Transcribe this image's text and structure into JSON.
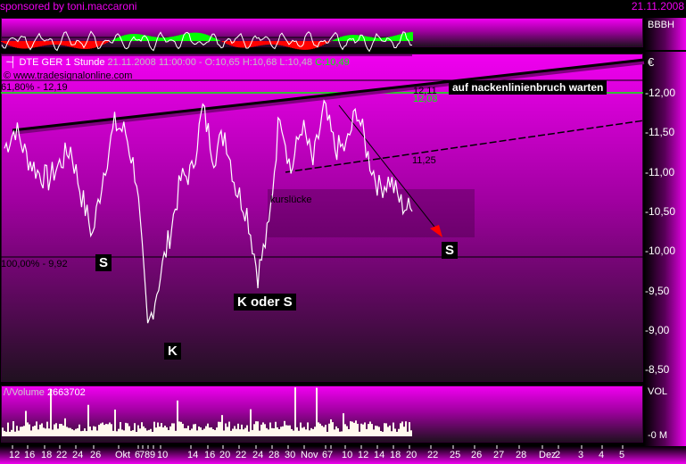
{
  "header": {
    "sponsor": "sponsored by toni.maccaroni",
    "date": "21.11.2008"
  },
  "oscillator": {
    "label": "BBBH"
  },
  "main": {
    "title": "DTE GER 1 Stunde",
    "quote": "21.11.2008 11:00:00 - O:10,65 H:10,68 L:10,48",
    "close": "C:10,49",
    "copyright": "© www.tradesignalonline.com",
    "currency": "€",
    "fib_618": "61,80% - 12,19",
    "fib_100": "100,00% - 9,92",
    "level_1211": "12,11",
    "level_1203": "12,03",
    "level_1125": "11,25",
    "gap_label": "kurslücke",
    "note": "auf nackenlinienbruch warten",
    "marks": {
      "s1": "S",
      "k": "K",
      "ks": "K oder S",
      "s2": "S"
    },
    "yticks": [
      "-12,00",
      "-11,50",
      "-11,00",
      "-10,50",
      "-10,00",
      "-9,50",
      "-9,00",
      "-8,50"
    ]
  },
  "volume": {
    "label": "Volume",
    "value": "2663702",
    "axis_top": "VOL",
    "axis_bottom": "-0 M"
  },
  "xaxis": [
    "12",
    "16",
    "18",
    "22",
    "24",
    "26",
    "Okt",
    "6",
    "7",
    "8",
    "9",
    "10",
    "14",
    "16",
    "20",
    "22",
    "24",
    "28",
    "30",
    "Nov",
    "6",
    "7",
    "10",
    "12",
    "14",
    "18",
    "20",
    "22",
    "25",
    "26",
    "27",
    "28",
    "Dez",
    "2",
    "3",
    "4",
    "5"
  ],
  "colors": {
    "panel_top": "#f000f0",
    "panel_bottom": "#201020",
    "price": "#ffffff",
    "green": "#00ff00",
    "red": "#ff0000"
  },
  "chart_data": {
    "type": "line",
    "title": "DTE GER 1 Stunde",
    "ylim": [
      8.2,
      12.4
    ],
    "yunit": "€",
    "close": [
      11.3,
      11.55,
      11.2,
      11.0,
      10.9,
      11.1,
      11.3,
      10.7,
      10.2,
      11.0,
      11.6,
      11.5,
      10.9,
      9.0,
      9.6,
      10.2,
      10.9,
      11.0,
      11.8,
      11.2,
      11.5,
      10.8,
      10.5,
      9.7,
      10.3,
      11.8,
      11.0,
      11.6,
      11.1,
      11.8,
      11.3,
      11.3,
      11.8,
      11.2,
      10.8,
      10.9,
      10.6,
      10.5
    ]
  }
}
